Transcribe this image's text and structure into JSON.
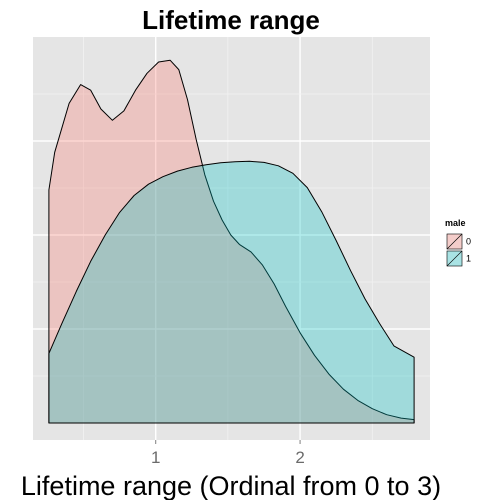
{
  "chart_data": {
    "type": "area",
    "title": "Lifetime range",
    "xlabel": "Lifetime range (Ordinal from 0 to 3)",
    "ylabel": "",
    "xlim": [
      0.15,
      2.9
    ],
    "ylim": [
      0,
      1.0
    ],
    "x_ticks": [
      1,
      2
    ],
    "x_tick_labels": [
      "1",
      "2"
    ],
    "grid": true,
    "legend": {
      "title": "male",
      "position": "right"
    },
    "series": [
      {
        "name": "0",
        "color": "#F8766D",
        "x": [
          0.26,
          0.3,
          0.4,
          0.48,
          0.55,
          0.62,
          0.7,
          0.78,
          0.86,
          0.94,
          1.02,
          1.1,
          1.16,
          1.22,
          1.28,
          1.34,
          1.4,
          1.46,
          1.52,
          1.58,
          1.66,
          1.74,
          1.82,
          1.9,
          2.0,
          2.1,
          2.2,
          2.3,
          2.4,
          2.5,
          2.6,
          2.7,
          2.79
        ],
        "y": [
          0.62,
          0.72,
          0.85,
          0.9,
          0.885,
          0.835,
          0.805,
          0.83,
          0.885,
          0.93,
          0.96,
          0.965,
          0.94,
          0.86,
          0.755,
          0.66,
          0.59,
          0.54,
          0.5,
          0.475,
          0.455,
          0.42,
          0.37,
          0.31,
          0.24,
          0.18,
          0.13,
          0.09,
          0.06,
          0.038,
          0.022,
          0.013,
          0.009
        ]
      },
      {
        "name": "1",
        "color": "#00BFC4",
        "x": [
          0.26,
          0.35,
          0.45,
          0.55,
          0.65,
          0.75,
          0.85,
          0.95,
          1.05,
          1.15,
          1.25,
          1.35,
          1.45,
          1.55,
          1.65,
          1.75,
          1.85,
          1.95,
          2.05,
          2.15,
          2.25,
          2.35,
          2.45,
          2.55,
          2.65,
          2.79
        ],
        "y": [
          0.185,
          0.265,
          0.35,
          0.43,
          0.5,
          0.56,
          0.605,
          0.635,
          0.655,
          0.67,
          0.68,
          0.687,
          0.692,
          0.695,
          0.696,
          0.693,
          0.684,
          0.664,
          0.626,
          0.562,
          0.485,
          0.405,
          0.33,
          0.265,
          0.205,
          0.175
        ]
      }
    ]
  }
}
